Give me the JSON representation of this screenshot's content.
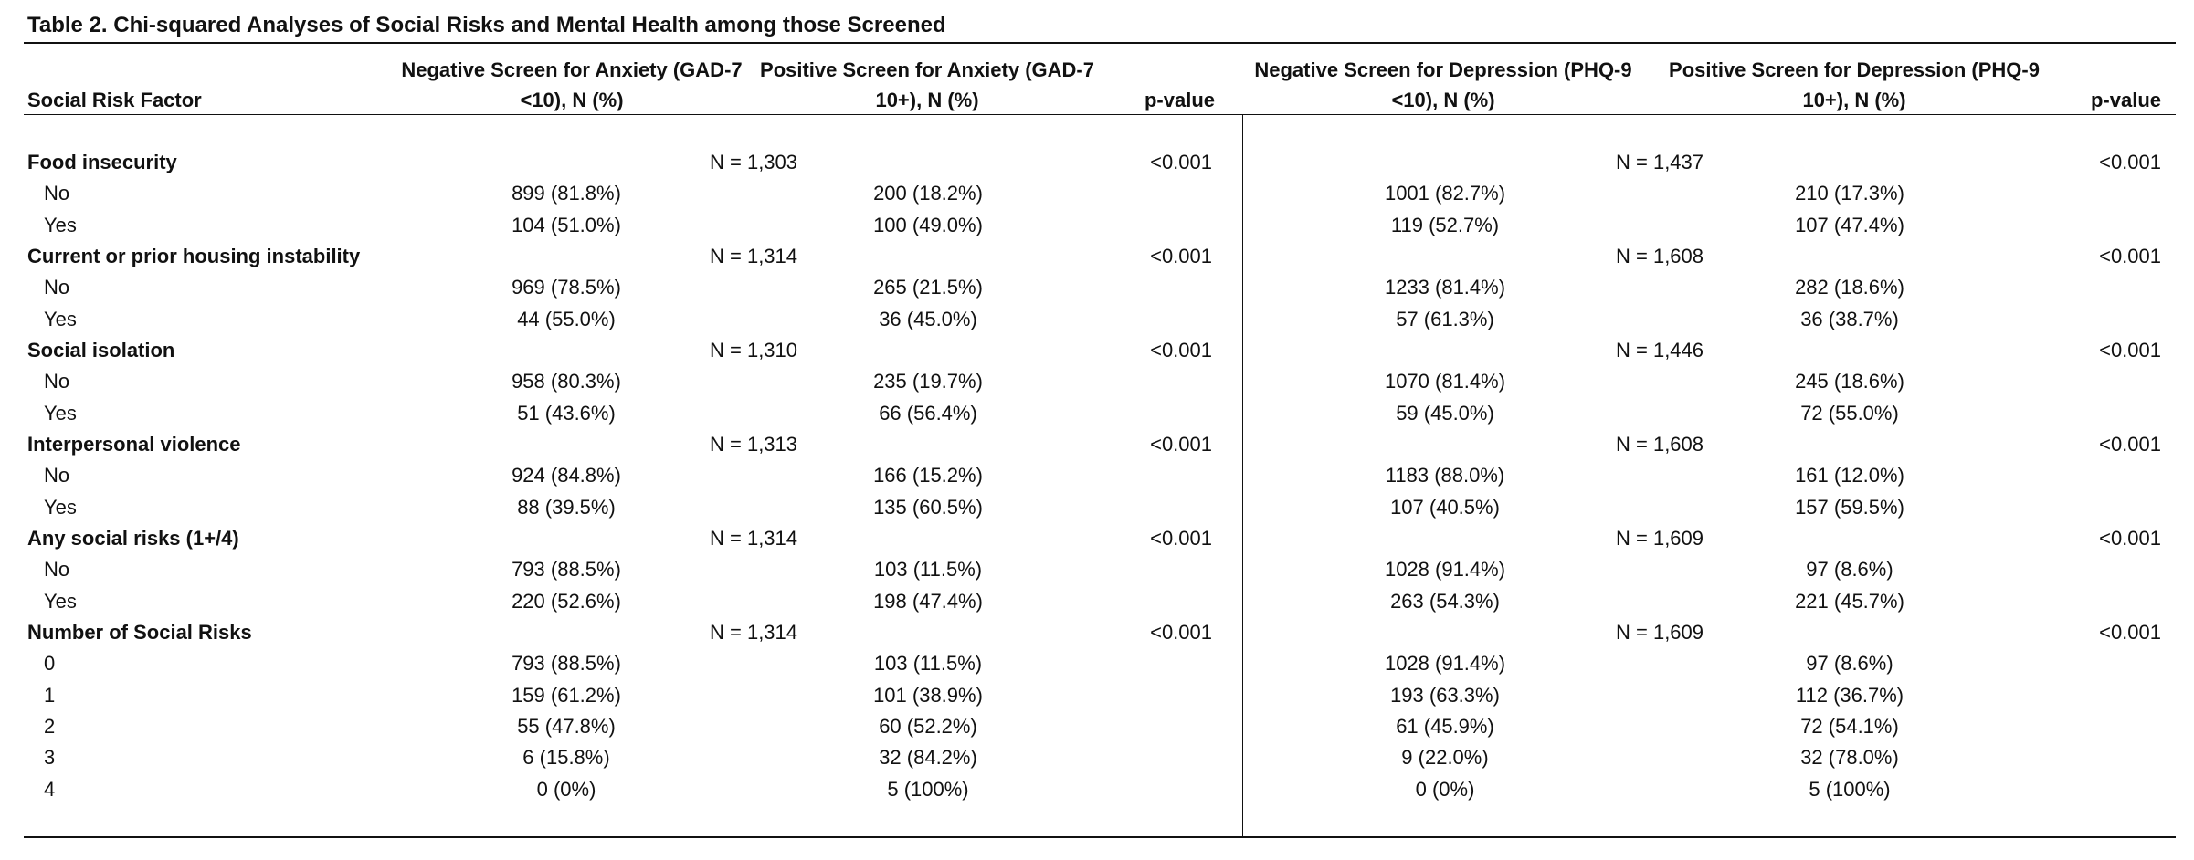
{
  "table": {
    "title": "Table 2. Chi-squared Analyses of Social Risks and Mental Health among those Screened",
    "headers": {
      "factor": "Social Risk Factor",
      "neg_anxiety": "Negative Screen for Anxiety (GAD-7 <10), N (%)",
      "pos_anxiety": "Positive Screen for Anxiety (GAD-7 10+), N (%)",
      "p_anxiety": "p-value",
      "neg_depression": "Negative Screen for Depression (PHQ-9 <10), N (%)",
      "pos_depression": "Positive Screen for Depression (PHQ-9 10+), N (%)",
      "p_depression": "p-value"
    },
    "rows": [
      {
        "label": "Food insecurity",
        "bold": true,
        "n_anx": "N = 1,303",
        "p_anx": "<0.001",
        "n_dep": "N = 1,437",
        "p_dep": "<0.001"
      },
      {
        "label": "No",
        "neg_anx": "899 (81.8%)",
        "pos_anx": "200 (18.2%)",
        "neg_dep": "1001 (82.7%)",
        "pos_dep": "210 (17.3%)"
      },
      {
        "label": "Yes",
        "neg_anx": "104 (51.0%)",
        "pos_anx": "100 (49.0%)",
        "neg_dep": "119 (52.7%)",
        "pos_dep": "107 (47.4%)"
      },
      {
        "label": "Current or prior housing instability",
        "bold": true,
        "n_anx": "N = 1,314",
        "p_anx": "<0.001",
        "n_dep": "N = 1,608",
        "p_dep": "<0.001"
      },
      {
        "label": "No",
        "neg_anx": "969 (78.5%)",
        "pos_anx": "265 (21.5%)",
        "neg_dep": "1233 (81.4%)",
        "pos_dep": "282 (18.6%)"
      },
      {
        "label": "Yes",
        "neg_anx": "44 (55.0%)",
        "pos_anx": "36 (45.0%)",
        "neg_dep": "57 (61.3%)",
        "pos_dep": "36 (38.7%)"
      },
      {
        "label": "Social isolation",
        "bold": true,
        "n_anx": "N = 1,310",
        "p_anx": "<0.001",
        "n_dep": "N = 1,446",
        "p_dep": "<0.001"
      },
      {
        "label": "No",
        "neg_anx": "958 (80.3%)",
        "pos_anx": "235 (19.7%)",
        "neg_dep": "1070 (81.4%)",
        "pos_dep": "245 (18.6%)"
      },
      {
        "label": "Yes",
        "neg_anx": "51 (43.6%)",
        "pos_anx": "66 (56.4%)",
        "neg_dep": "59 (45.0%)",
        "pos_dep": "72 (55.0%)"
      },
      {
        "label": "Interpersonal violence",
        "bold": true,
        "n_anx": "N = 1,313",
        "p_anx": "<0.001",
        "n_dep": "N = 1,608",
        "p_dep": "<0.001"
      },
      {
        "label": "No",
        "neg_anx": "924 (84.8%)",
        "pos_anx": "166 (15.2%)",
        "neg_dep": "1183 (88.0%)",
        "pos_dep": "161 (12.0%)"
      },
      {
        "label": "Yes",
        "neg_anx": "88 (39.5%)",
        "pos_anx": "135 (60.5%)",
        "neg_dep": "107 (40.5%)",
        "pos_dep": "157 (59.5%)"
      },
      {
        "label": "Any social risks (1+/4)",
        "bold": true,
        "n_anx": "N = 1,314",
        "p_anx": "<0.001",
        "n_dep": "N = 1,609",
        "p_dep": "<0.001"
      },
      {
        "label": "No",
        "neg_anx": "793 (88.5%)",
        "pos_anx": "103 (11.5%)",
        "neg_dep": "1028 (91.4%)",
        "pos_dep": "97 (8.6%)"
      },
      {
        "label": "Yes",
        "neg_anx": "220 (52.6%)",
        "pos_anx": "198 (47.4%)",
        "neg_dep": "263 (54.3%)",
        "pos_dep": "221 (45.7%)"
      },
      {
        "label": "Number of Social Risks",
        "bold": true,
        "n_anx": "N = 1,314",
        "p_anx": "<0.001",
        "n_dep": "N = 1,609",
        "p_dep": "<0.001"
      },
      {
        "label": "0",
        "neg_anx": "793 (88.5%)",
        "pos_anx": "103 (11.5%)",
        "neg_dep": "1028 (91.4%)",
        "pos_dep": "97 (8.6%)"
      },
      {
        "label": "1",
        "neg_anx": "159 (61.2%)",
        "pos_anx": "101 (38.9%)",
        "neg_dep": "193 (63.3%)",
        "pos_dep": "112 (36.7%)"
      },
      {
        "label": "2",
        "neg_anx": "55 (47.8%)",
        "pos_anx": "60 (52.2%)",
        "neg_dep": "61 (45.9%)",
        "pos_dep": "72 (54.1%)"
      },
      {
        "label": "3",
        "neg_anx": "6 (15.8%)",
        "pos_anx": "32 (84.2%)",
        "neg_dep": "9 (22.0%)",
        "pos_dep": "32 (78.0%)"
      },
      {
        "label": "4",
        "neg_anx": "0 (0%)",
        "pos_anx": "5 (100%)",
        "neg_dep": "0 (0%)",
        "pos_dep": "5 (100%)"
      }
    ]
  }
}
